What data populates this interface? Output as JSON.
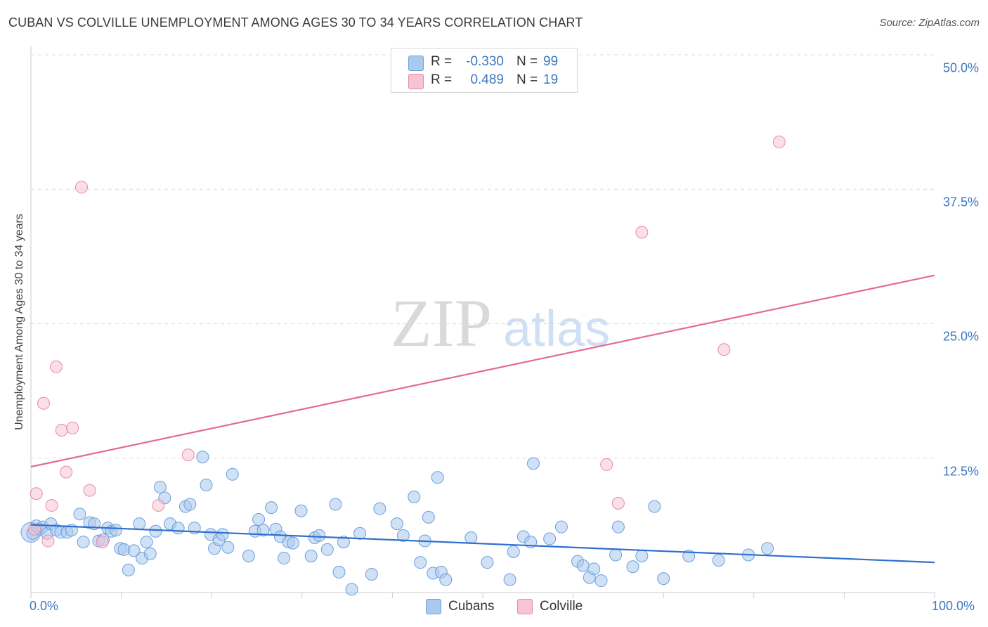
{
  "title": "CUBAN VS COLVILLE UNEMPLOYMENT AMONG AGES 30 TO 34 YEARS CORRELATION CHART",
  "source": "Source: ZipAtlas.com",
  "watermark": {
    "zip": "ZIP",
    "atlas": "atlas"
  },
  "colors": {
    "blue_fill": "#a9c9ef",
    "blue_stroke": "#6b9fdc",
    "blue_line": "#2f6fcf",
    "pink_fill": "#f7c4d2",
    "pink_stroke": "#e98aa6",
    "pink_line": "#e46a94",
    "axis_text": "#3b78c3",
    "grid": "#dddddd"
  },
  "legend": {
    "rows": [
      {
        "series": "Cubans",
        "r_label": "R =",
        "r_value": "-0.330",
        "n_label": "N =",
        "n_value": "99"
      },
      {
        "series": "Colville",
        "r_label": "R =",
        "r_value": "0.489",
        "n_label": "N =",
        "n_value": "19"
      }
    ],
    "bottom": [
      "Cubans",
      "Colville"
    ]
  },
  "chart_data": {
    "type": "scatter",
    "title": "CUBAN VS COLVILLE UNEMPLOYMENT AMONG AGES 30 TO 34 YEARS CORRELATION CHART",
    "xlabel": "",
    "ylabel": "Unemployment Among Ages 30 to 34 years",
    "xlim": [
      0,
      100
    ],
    "ylim": [
      0,
      50
    ],
    "x_tick_labels": [
      "0.0%",
      "100.0%"
    ],
    "y_ticks": [
      12.5,
      25.0,
      37.5,
      50.0
    ],
    "y_tick_labels": [
      "12.5%",
      "25.0%",
      "37.5%",
      "50.0%"
    ],
    "grid": true,
    "legend_position": "top-center",
    "series": [
      {
        "name": "Cubans",
        "color": "#a9c9ef",
        "trend": {
          "x": [
            0,
            100
          ],
          "y": [
            6.3,
            2.8
          ]
        },
        "points": [
          [
            0.2,
            5.5
          ],
          [
            0.6,
            6.2
          ],
          [
            1.0,
            5.9
          ],
          [
            1.3,
            6.1
          ],
          [
            1.8,
            5.5
          ],
          [
            2.2,
            6.4
          ],
          [
            2.8,
            5.8
          ],
          [
            3.3,
            5.6
          ],
          [
            4.0,
            5.6
          ],
          [
            4.5,
            5.8
          ],
          [
            5.4,
            7.3
          ],
          [
            5.8,
            4.7
          ],
          [
            6.5,
            6.5
          ],
          [
            7.0,
            6.4
          ],
          [
            7.5,
            4.8
          ],
          [
            8.0,
            4.9
          ],
          [
            8.5,
            6.0
          ],
          [
            8.9,
            5.7
          ],
          [
            9.4,
            5.8
          ],
          [
            9.9,
            4.1
          ],
          [
            10.3,
            4.0
          ],
          [
            10.8,
            2.1
          ],
          [
            11.4,
            3.9
          ],
          [
            12.0,
            6.4
          ],
          [
            12.3,
            3.2
          ],
          [
            12.8,
            4.7
          ],
          [
            13.2,
            3.6
          ],
          [
            13.8,
            5.7
          ],
          [
            14.3,
            9.8
          ],
          [
            14.8,
            8.8
          ],
          [
            15.4,
            6.4
          ],
          [
            16.3,
            6.0
          ],
          [
            17.1,
            8.0
          ],
          [
            17.6,
            8.2
          ],
          [
            18.1,
            6.0
          ],
          [
            19.0,
            12.6
          ],
          [
            19.4,
            10.0
          ],
          [
            19.9,
            5.4
          ],
          [
            20.3,
            4.1
          ],
          [
            20.8,
            4.9
          ],
          [
            21.2,
            5.4
          ],
          [
            21.8,
            4.2
          ],
          [
            22.3,
            11.0
          ],
          [
            24.1,
            3.4
          ],
          [
            24.8,
            5.7
          ],
          [
            25.2,
            6.8
          ],
          [
            25.7,
            5.8
          ],
          [
            26.6,
            7.9
          ],
          [
            27.1,
            5.9
          ],
          [
            27.6,
            5.2
          ],
          [
            28.0,
            3.2
          ],
          [
            28.5,
            4.7
          ],
          [
            29.0,
            4.6
          ],
          [
            29.9,
            7.6
          ],
          [
            31.0,
            3.4
          ],
          [
            31.4,
            5.1
          ],
          [
            31.9,
            5.3
          ],
          [
            32.8,
            4.0
          ],
          [
            33.7,
            8.2
          ],
          [
            34.1,
            1.9
          ],
          [
            34.6,
            4.7
          ],
          [
            35.5,
            0.3
          ],
          [
            36.4,
            5.5
          ],
          [
            37.7,
            1.7
          ],
          [
            38.6,
            7.8
          ],
          [
            40.5,
            6.4
          ],
          [
            41.2,
            5.3
          ],
          [
            42.4,
            8.9
          ],
          [
            43.1,
            2.8
          ],
          [
            43.6,
            4.8
          ],
          [
            44.0,
            7.0
          ],
          [
            44.5,
            1.8
          ],
          [
            45.0,
            10.7
          ],
          [
            45.4,
            1.9
          ],
          [
            45.9,
            1.2
          ],
          [
            48.7,
            5.1
          ],
          [
            50.5,
            2.8
          ],
          [
            53.0,
            1.2
          ],
          [
            53.4,
            3.8
          ],
          [
            54.5,
            5.2
          ],
          [
            55.3,
            4.7
          ],
          [
            55.6,
            12.0
          ],
          [
            57.4,
            5.0
          ],
          [
            58.7,
            6.1
          ],
          [
            60.5,
            2.9
          ],
          [
            61.1,
            2.5
          ],
          [
            61.8,
            1.4
          ],
          [
            62.3,
            2.2
          ],
          [
            63.1,
            1.1
          ],
          [
            64.7,
            3.5
          ],
          [
            65.0,
            6.1
          ],
          [
            66.6,
            2.4
          ],
          [
            67.6,
            3.4
          ],
          [
            69.0,
            8.0
          ],
          [
            70.0,
            1.3
          ],
          [
            72.8,
            3.4
          ],
          [
            76.1,
            3.0
          ],
          [
            79.4,
            3.5
          ],
          [
            81.5,
            4.1
          ]
        ]
      },
      {
        "name": "Colville",
        "color": "#f7c4d2",
        "trend": {
          "x": [
            0,
            100
          ],
          "y": [
            11.7,
            29.5
          ]
        },
        "points": [
          [
            0.4,
            5.9
          ],
          [
            0.6,
            9.2
          ],
          [
            1.4,
            17.6
          ],
          [
            1.9,
            4.8
          ],
          [
            2.3,
            8.1
          ],
          [
            2.8,
            21.0
          ],
          [
            3.4,
            15.1
          ],
          [
            3.9,
            11.2
          ],
          [
            4.6,
            15.3
          ],
          [
            5.6,
            37.7
          ],
          [
            6.5,
            9.5
          ],
          [
            7.9,
            4.7
          ],
          [
            14.1,
            8.1
          ],
          [
            17.4,
            12.8
          ],
          [
            63.7,
            11.9
          ],
          [
            65.0,
            8.3
          ],
          [
            67.6,
            33.5
          ],
          [
            76.7,
            22.6
          ],
          [
            82.8,
            41.9
          ]
        ]
      }
    ]
  }
}
